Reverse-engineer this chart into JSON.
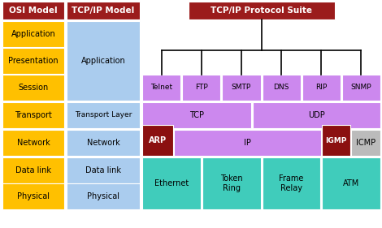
{
  "title": "TCP/IP Protocol Suite",
  "col1_title": "OSI Model",
  "col2_title": "TCP/IP Model",
  "header_bg": "#9B1C1C",
  "header_fg": "#FFFFFF",
  "osi_layers": [
    "Application",
    "Presentation",
    "Session",
    "Transport",
    "Network",
    "Data link",
    "Physical"
  ],
  "osi_bg": "#FFC000",
  "osi_fg": "#000000",
  "tcpip_bg": "#AACCEE",
  "tcpip_fg": "#000000",
  "app_protocols": [
    "Telnet",
    "FTP",
    "SMTP",
    "DNS",
    "RIP",
    "SNMP"
  ],
  "proto_bg": "#CC88EE",
  "proto_fg": "#000000",
  "datalink_protocols": [
    "Ethernet",
    "Token\nRing",
    "Frame\nRelay",
    "ATM"
  ],
  "datalink_bg": "#40CCBB",
  "datalink_fg": "#000000",
  "arp_bg": "#8B1010",
  "arp_fg": "#FFFFFF",
  "igmp_bg": "#8B1010",
  "igmp_fg": "#FFFFFF",
  "icmp_bg": "#BBBBBB",
  "icmp_fg": "#000000",
  "ip_bg": "#CC88EE",
  "ip_fg": "#000000",
  "fig_width": 4.7,
  "fig_height": 2.81,
  "dpi": 100
}
